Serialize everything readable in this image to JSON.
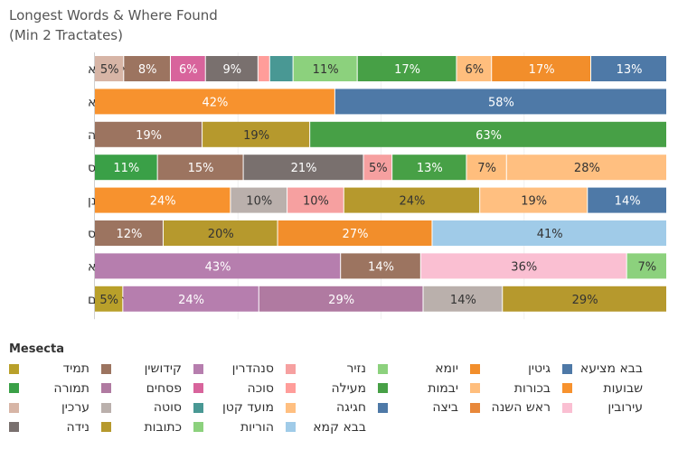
{
  "title": {
    "line1": "Longest Words & Where Found",
    "line2": "(Min 2 Tractates)"
  },
  "chart_data": {
    "type": "bar",
    "orientation": "horizontal",
    "stacked": "percent",
    "title": "Longest Words & Where Found (Min 2 Tractates)",
    "categories": [
      "מדאורייתא",
      "בדאורייתא",
      "בקרובותיה",
      "ואנדרוגינוס",
      "לאשמועינן",
      "אפוטרופוס",
      "דפומבדיתא",
      "שבירושלים"
    ],
    "rows": [
      {
        "word": "מדאורייתא",
        "segments": [
          {
            "series": "תמיד",
            "value": 0,
            "label": ""
          },
          {
            "series": "ערכין",
            "value": 5,
            "label": "5%"
          },
          {
            "series": "קידושין",
            "value": 8,
            "label": "8%"
          },
          {
            "series": "סוכה",
            "value": 6,
            "label": "6%"
          },
          {
            "series": "נידה",
            "value": 9,
            "label": "9%"
          },
          {
            "series": "מעילה",
            "value": 2,
            "label": ""
          },
          {
            "series": "מועד קטן",
            "value": 4,
            "label": ""
          },
          {
            "series": "יומא",
            "value": 11,
            "label": "11%"
          },
          {
            "series": "יבמות",
            "value": 17,
            "label": "17%"
          },
          {
            "series": "בכורות",
            "value": 6,
            "label": "6%"
          },
          {
            "series": "גיטין",
            "value": 17,
            "label": "17%"
          },
          {
            "series": "בבא מציעא",
            "value": 13,
            "label": "13%"
          }
        ]
      },
      {
        "word": "בדאורייתא",
        "segments": [
          {
            "series": "שבועות",
            "value": 42,
            "label": "42%"
          },
          {
            "series": "בבא מציעא",
            "value": 58,
            "label": "58%"
          }
        ]
      },
      {
        "word": "בקרובותיה",
        "segments": [
          {
            "series": "קידושין",
            "value": 19,
            "label": "19%"
          },
          {
            "series": "כתובות",
            "value": 19,
            "label": "19%"
          },
          {
            "series": "יבמות",
            "value": 63,
            "label": "63%"
          }
        ]
      },
      {
        "word": "ואנדרוגינוס",
        "segments": [
          {
            "series": "תמורה",
            "value": 11,
            "label": "11%"
          },
          {
            "series": "קידושין",
            "value": 15,
            "label": "15%"
          },
          {
            "series": "נידה",
            "value": 21,
            "label": "21%"
          },
          {
            "series": "נזיר",
            "value": 5,
            "label": "5%"
          },
          {
            "series": "יבמות",
            "value": 13,
            "label": "13%"
          },
          {
            "series": "בכורות",
            "value": 7,
            "label": "7%"
          },
          {
            "series": "חגיגה",
            "value": 28,
            "label": "28%"
          }
        ]
      },
      {
        "word": "לאשמועינן",
        "segments": [
          {
            "series": "שבועות",
            "value": 24,
            "label": "24%"
          },
          {
            "series": "סוטה",
            "value": 10,
            "label": "10%"
          },
          {
            "series": "נזיר",
            "value": 10,
            "label": "10%"
          },
          {
            "series": "כתובות",
            "value": 24,
            "label": "24%"
          },
          {
            "series": "חגיגה",
            "value": 19,
            "label": "19%"
          },
          {
            "series": "ביצה",
            "value": 14,
            "label": "14%"
          }
        ]
      },
      {
        "word": "אפוטרופוס",
        "segments": [
          {
            "series": "קידושין",
            "value": 12,
            "label": "12%"
          },
          {
            "series": "כתובות",
            "value": 20,
            "label": "20%"
          },
          {
            "series": "גיטין",
            "value": 27,
            "label": "27%"
          },
          {
            "series": "בבא קמא",
            "value": 41,
            "label": "41%"
          }
        ]
      },
      {
        "word": "דפומבדיתא",
        "segments": [
          {
            "series": "סנהדרין",
            "value": 43,
            "label": "43%"
          },
          {
            "series": "קידושין",
            "value": 14,
            "label": "14%"
          },
          {
            "series": "עירובין",
            "value": 36,
            "label": "36%"
          },
          {
            "series": "הוריות",
            "value": 7,
            "label": "7%"
          }
        ]
      },
      {
        "word": "שבירושלים",
        "segments": [
          {
            "series": "תמיד",
            "value": 5,
            "label": "5%"
          },
          {
            "series": "סנהדרין",
            "value": 24,
            "label": "24%"
          },
          {
            "series": "פסחים",
            "value": 29,
            "label": "29%"
          },
          {
            "series": "סוטה",
            "value": 14,
            "label": "14%"
          },
          {
            "series": "כתובות",
            "value": 29,
            "label": "29%"
          }
        ]
      }
    ],
    "legend": {
      "title": "Mesecta",
      "placement": "bottom",
      "items": [
        {
          "name": "תמיד",
          "color": "#B9A02A"
        },
        {
          "name": "קידושין",
          "color": "#9C7460"
        },
        {
          "name": "סנהדרין",
          "color": "#B67EAE"
        },
        {
          "name": "נזיר",
          "color": "#F6A0A0"
        },
        {
          "name": "יומא",
          "color": "#8CD17D"
        },
        {
          "name": "גיטין",
          "color": "#F28E2B"
        },
        {
          "name": "בבא מציעא",
          "color": "#4E79A7"
        },
        {
          "name": "תמורה",
          "color": "#3AA047"
        },
        {
          "name": "פסחים",
          "color": "#B07AA1"
        },
        {
          "name": "סוכה",
          "color": "#D8649C"
        },
        {
          "name": "מעילה",
          "color": "#FF9D9A"
        },
        {
          "name": "יבמות",
          "color": "#47A046"
        },
        {
          "name": "בכורות",
          "color": "#FFBE7D"
        },
        {
          "name": "שבועות",
          "color": "#F7922E"
        },
        {
          "name": "ערכין",
          "color": "#D7B5A6"
        },
        {
          "name": "סוטה",
          "color": "#BAB0AC"
        },
        {
          "name": "מועד קטן",
          "color": "#499894"
        },
        {
          "name": "חגיגה",
          "color": "#FFBF80"
        },
        {
          "name": "ביצה",
          "color": "#4E79A7"
        },
        {
          "name": "ראש השנה",
          "color": "#E8883A"
        },
        {
          "name": "עירובין",
          "color": "#FABFD2"
        },
        {
          "name": "נידה",
          "color": "#79706E"
        },
        {
          "name": "כתובות",
          "color": "#B6992D"
        },
        {
          "name": "הוריות",
          "color": "#8CD17D"
        },
        {
          "name": "בבא קמא",
          "color": "#A0CBE8"
        }
      ]
    }
  }
}
